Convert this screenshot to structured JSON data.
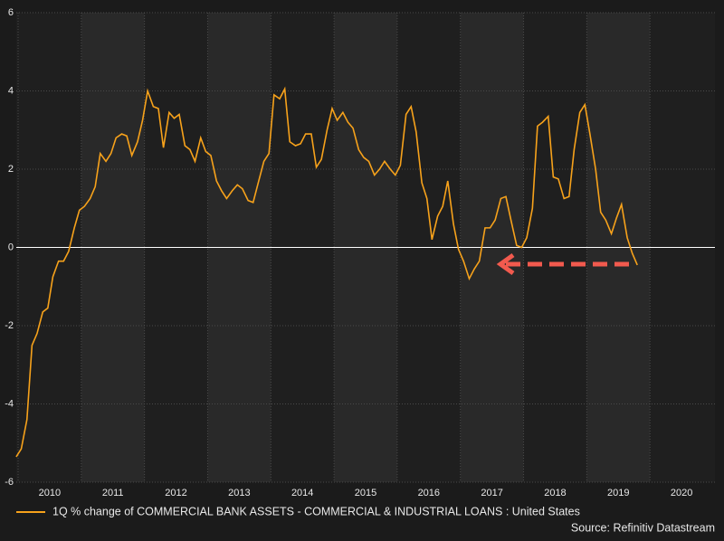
{
  "chart_data": {
    "type": "line",
    "x": [
      2009.97,
      2010.05,
      2010.14,
      2010.22,
      2010.3,
      2010.39,
      2010.47,
      2010.55,
      2010.64,
      2010.72,
      2010.8,
      2010.89,
      2010.97,
      2011.05,
      2011.14,
      2011.22,
      2011.3,
      2011.39,
      2011.47,
      2011.55,
      2011.64,
      2011.72,
      2011.8,
      2011.89,
      2011.97,
      2012.05,
      2012.14,
      2012.22,
      2012.3,
      2012.39,
      2012.47,
      2012.55,
      2012.64,
      2012.72,
      2012.8,
      2012.89,
      2012.97,
      2013.05,
      2013.14,
      2013.22,
      2013.3,
      2013.39,
      2013.47,
      2013.55,
      2013.64,
      2013.72,
      2013.8,
      2013.89,
      2013.97,
      2014.05,
      2014.14,
      2014.22,
      2014.3,
      2014.39,
      2014.47,
      2014.55,
      2014.64,
      2014.72,
      2014.8,
      2014.89,
      2014.97,
      2015.05,
      2015.14,
      2015.22,
      2015.3,
      2015.39,
      2015.47,
      2015.55,
      2015.64,
      2015.72,
      2015.8,
      2015.89,
      2015.97,
      2016.05,
      2016.14,
      2016.22,
      2016.3,
      2016.39,
      2016.47,
      2016.55,
      2016.64,
      2016.72,
      2016.8,
      2016.89,
      2016.97,
      2017.05,
      2017.14,
      2017.22,
      2017.3,
      2017.39,
      2017.47,
      2017.55,
      2017.64,
      2017.72,
      2017.8,
      2017.89,
      2017.97,
      2018.05,
      2018.14,
      2018.22,
      2018.3,
      2018.39,
      2018.47,
      2018.55,
      2018.64,
      2018.72,
      2018.8,
      2018.89,
      2018.97,
      2019.05,
      2019.14,
      2019.22,
      2019.3,
      2019.39,
      2019.47,
      2019.55,
      2019.64,
      2019.72,
      2019.8
    ],
    "series": [
      {
        "name": "1Q % change of COMMERCIAL BANK ASSETS - COMMERCIAL & INDUSTRIAL LOANS : United States",
        "color": "#f7a21b",
        "values": [
          -5.35,
          -5.15,
          -4.4,
          -2.5,
          -2.2,
          -1.65,
          -1.55,
          -0.75,
          -0.35,
          -0.35,
          -0.1,
          0.5,
          0.95,
          1.05,
          1.25,
          1.55,
          2.4,
          2.2,
          2.4,
          2.8,
          2.9,
          2.85,
          2.35,
          2.7,
          3.25,
          4.0,
          3.6,
          3.55,
          2.55,
          3.45,
          3.3,
          3.4,
          2.6,
          2.5,
          2.2,
          2.8,
          2.45,
          2.35,
          1.7,
          1.45,
          1.25,
          1.45,
          1.6,
          1.5,
          1.2,
          1.15,
          1.65,
          2.2,
          2.4,
          3.9,
          3.8,
          4.05,
          2.7,
          2.6,
          2.65,
          2.9,
          2.9,
          2.05,
          2.25,
          3.0,
          3.55,
          3.25,
          3.45,
          3.2,
          3.05,
          2.5,
          2.3,
          2.2,
          1.85,
          2.0,
          2.2,
          2.0,
          1.85,
          2.1,
          3.4,
          3.6,
          2.95,
          1.65,
          1.25,
          0.2,
          0.8,
          1.05,
          1.7,
          0.6,
          -0.05,
          -0.35,
          -0.8,
          -0.55,
          -0.35,
          0.5,
          0.5,
          0.7,
          1.25,
          1.3,
          0.7,
          0.05,
          0.0,
          0.25,
          1.0,
          3.1,
          3.2,
          3.35,
          1.8,
          1.75,
          1.25,
          1.3,
          2.5,
          3.45,
          3.65,
          2.9,
          2.0,
          0.9,
          0.7,
          0.35,
          0.75,
          1.1,
          0.25,
          -0.15,
          -0.45
        ]
      }
    ],
    "xlim": [
      2010,
      2021
    ],
    "xticks": [
      2010,
      2011,
      2012,
      2013,
      2014,
      2015,
      2016,
      2017,
      2018,
      2019,
      2020
    ],
    "ylim": [
      -6,
      6
    ],
    "yticks": [
      -6,
      -4,
      -2,
      0,
      2,
      4,
      6
    ],
    "grid": true,
    "source": "Source: Refinitiv Datastream"
  }
}
